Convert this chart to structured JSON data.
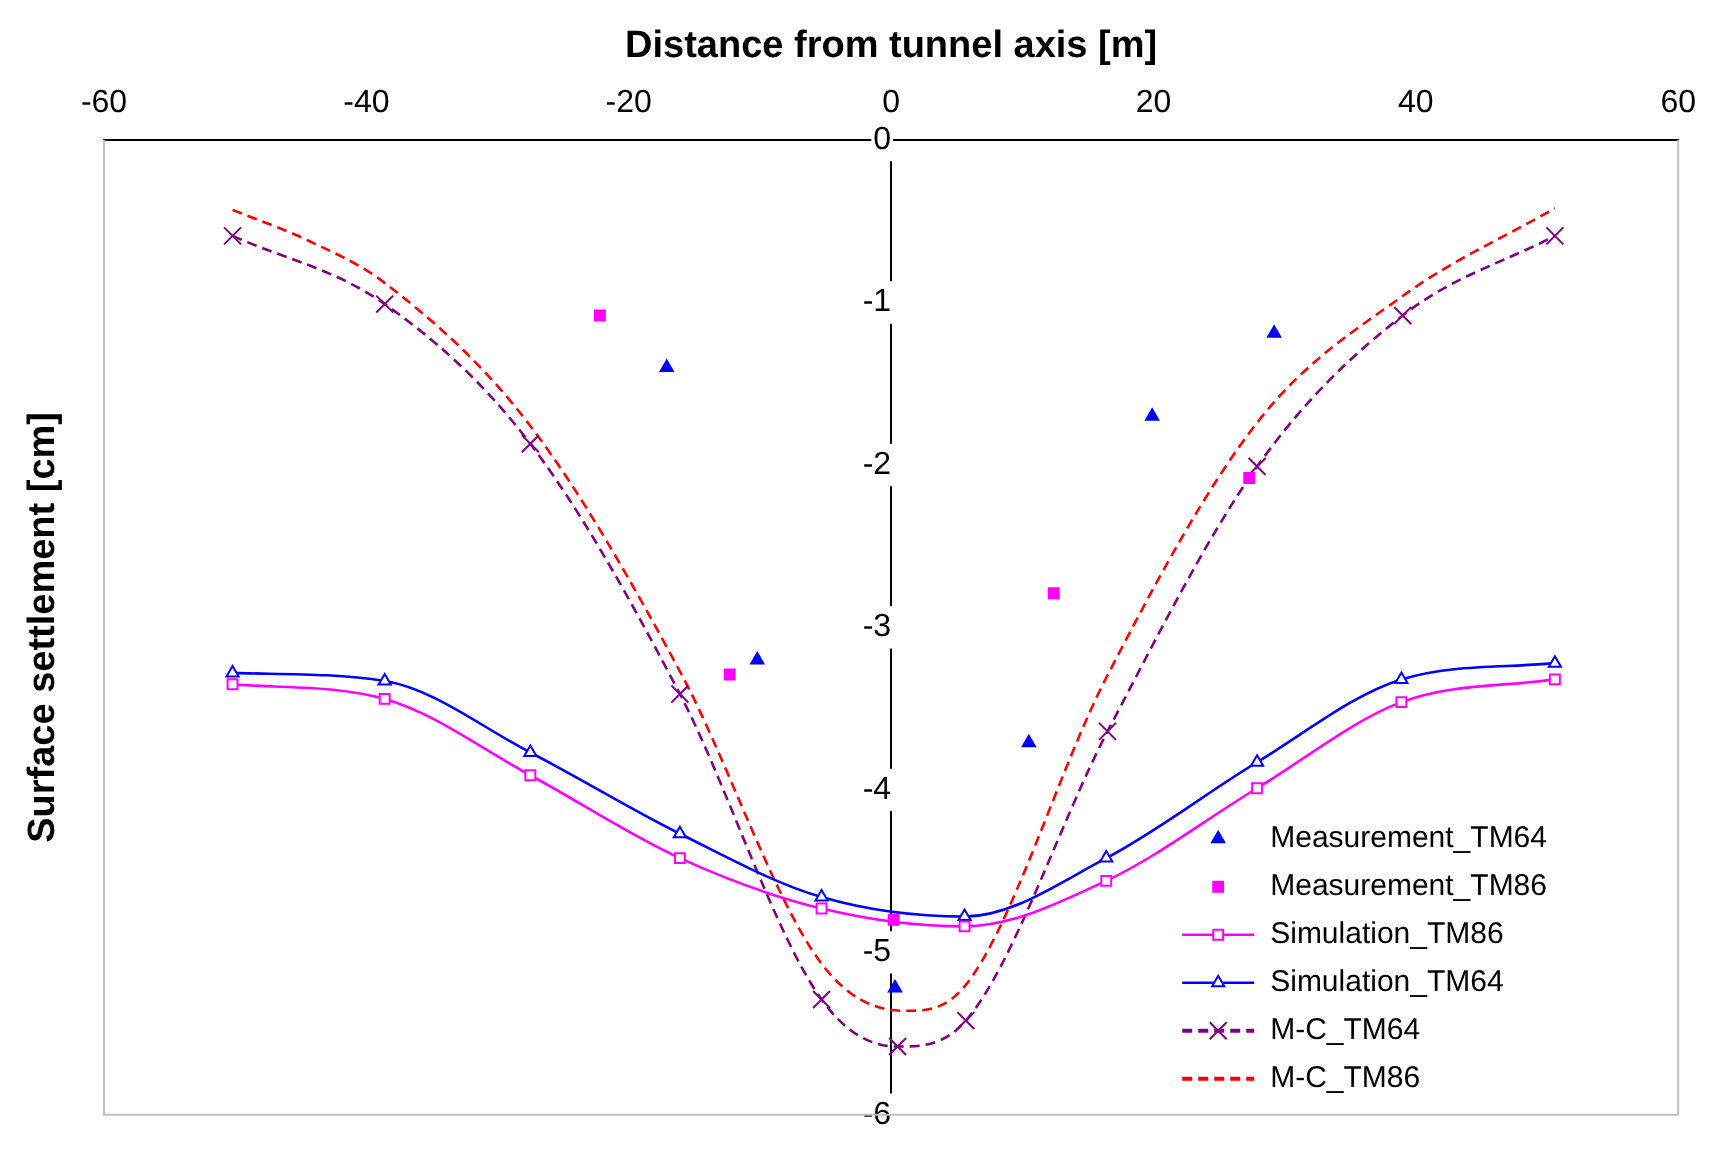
{
  "chart_data": {
    "type": "line",
    "xlabel": "Distance from tunnel axis [m]",
    "ylabel": "Surface settlement [cm]",
    "xlim": [
      -60,
      60
    ],
    "xticks": [
      -60,
      -40,
      -20,
      0,
      20,
      40,
      60
    ],
    "ylim": [
      -6,
      0
    ],
    "yticks": [
      -6,
      -5,
      -4,
      -3,
      -2,
      -1,
      0
    ],
    "grid": false,
    "legend": "bottom right",
    "series": [
      {
        "name": "Measurement_TM64",
        "type": "scatter",
        "color": "#0000ff",
        "marker": "triangle",
        "x": [
          -17.1,
          -10.2,
          0.3,
          10.5,
          19.9,
          29.2
        ],
        "values": [
          -1.4,
          -3.2,
          -5.22,
          -3.71,
          -1.7,
          -1.19
        ]
      },
      {
        "name": "Measurement_TM86",
        "type": "scatter",
        "color": "#ff00ff",
        "marker": "square",
        "x": [
          -22.2,
          -12.3,
          0.2,
          12.4,
          27.3
        ],
        "values": [
          -1.08,
          -3.29,
          -4.8,
          -2.79,
          -2.08
        ]
      },
      {
        "name": "Simulation_TM86",
        "type": "line",
        "color": "#ff00ff",
        "marker": "square",
        "line_style": "solid",
        "x": [
          -50.2,
          -38.6,
          -27.5,
          -16.1,
          -5.3,
          5.6,
          16.4,
          27.9,
          38.9,
          50.6
        ],
        "values": [
          -3.35,
          -3.44,
          -3.91,
          -4.42,
          -4.73,
          -4.84,
          -4.56,
          -3.99,
          -3.46,
          -3.32
        ]
      },
      {
        "name": "Simulation_TM64",
        "type": "line",
        "color": "#0000ff",
        "marker": "triangle",
        "line_style": "solid",
        "x": [
          -50.2,
          -38.6,
          -27.5,
          -16.1,
          -5.3,
          5.6,
          16.4,
          27.9,
          38.9,
          50.6
        ],
        "values": [
          -3.28,
          -3.33,
          -3.77,
          -4.27,
          -4.66,
          -4.78,
          -4.42,
          -3.83,
          -3.32,
          -3.22
        ]
      },
      {
        "name": "M-C_TM64",
        "type": "line",
        "color": "#800080",
        "marker": "cross",
        "line_style": "dashed",
        "x": [
          -50.2,
          -38.6,
          -27.5,
          -16.1,
          -5.3,
          0.5,
          5.7,
          16.5,
          27.9,
          39,
          50.6
        ],
        "values": [
          -0.59,
          -1.01,
          -1.87,
          -3.41,
          -5.29,
          -5.58,
          -5.42,
          -3.64,
          -2.01,
          -1.08,
          -0.59
        ]
      },
      {
        "name": "M-C_TM86",
        "type": "line",
        "color": "#ff0000",
        "marker": "none",
        "line_style": "dashed",
        "x": [
          -50.2,
          -44.4,
          -38.6,
          -27.5,
          -16.1,
          -5.3,
          1,
          5.6,
          16.4,
          27.9,
          39,
          50.6
        ],
        "values": [
          -0.43,
          -0.62,
          -0.88,
          -1.76,
          -3.27,
          -5.07,
          -5.36,
          -5.21,
          -3.31,
          -1.74,
          -0.96,
          -0.42
        ]
      }
    ]
  }
}
